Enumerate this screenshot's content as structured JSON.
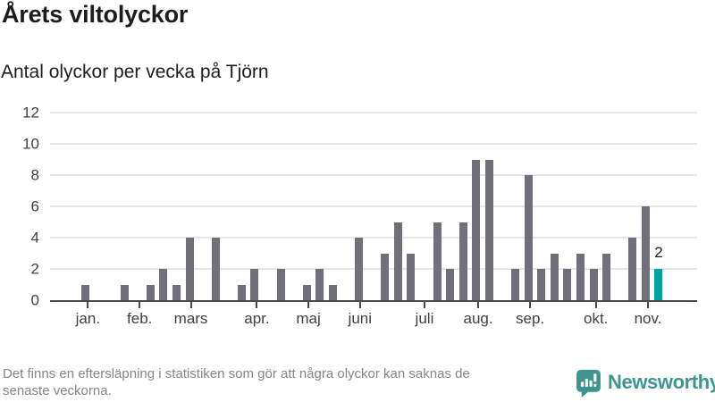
{
  "header": {
    "title": "Årets viltolyckor",
    "subtitle": "Antal olyckor per vecka på Tjörn"
  },
  "chart_data": {
    "type": "bar",
    "title": "Årets viltolyckor",
    "subtitle": "Antal olyckor per vecka på Tjörn",
    "ylabel": "",
    "xlabel": "",
    "ylim": [
      0,
      12
    ],
    "yticks": [
      0,
      2,
      4,
      6,
      8,
      10,
      12
    ],
    "grid": true,
    "bar_color": "#70707a",
    "highlight_color": "#00a59c",
    "axis_weeks": 49.45,
    "months": [
      {
        "label": "jan.",
        "slot": 2.7
      },
      {
        "label": "feb.",
        "slot": 6.67
      },
      {
        "label": "mars",
        "slot": 10.6
      },
      {
        "label": "apr.",
        "slot": 15.67
      },
      {
        "label": "maj",
        "slot": 19.62
      },
      {
        "label": "juni",
        "slot": 23.58
      },
      {
        "label": "juli",
        "slot": 28.53
      },
      {
        "label": "aug.",
        "slot": 32.65
      },
      {
        "label": "sep.",
        "slot": 36.63
      },
      {
        "label": "okt.",
        "slot": 41.68
      },
      {
        "label": "nov.",
        "slot": 45.68
      }
    ],
    "bars": [
      {
        "slot": 2,
        "value": 1
      },
      {
        "slot": 5,
        "value": 1
      },
      {
        "slot": 7,
        "value": 1
      },
      {
        "slot": 8,
        "value": 2
      },
      {
        "slot": 9,
        "value": 1
      },
      {
        "slot": 10,
        "value": 4
      },
      {
        "slot": 12,
        "value": 4
      },
      {
        "slot": 14,
        "value": 1
      },
      {
        "slot": 15,
        "value": 2
      },
      {
        "slot": 17,
        "value": 2
      },
      {
        "slot": 19,
        "value": 1
      },
      {
        "slot": 20,
        "value": 2
      },
      {
        "slot": 21,
        "value": 1
      },
      {
        "slot": 23,
        "value": 4
      },
      {
        "slot": 25,
        "value": 3
      },
      {
        "slot": 26,
        "value": 5
      },
      {
        "slot": 27,
        "value": 3
      },
      {
        "slot": 29,
        "value": 5
      },
      {
        "slot": 30,
        "value": 2
      },
      {
        "slot": 31,
        "value": 5
      },
      {
        "slot": 32,
        "value": 9
      },
      {
        "slot": 33,
        "value": 9
      },
      {
        "slot": 35,
        "value": 2
      },
      {
        "slot": 36,
        "value": 8
      },
      {
        "slot": 37,
        "value": 2
      },
      {
        "slot": 38,
        "value": 3
      },
      {
        "slot": 39,
        "value": 2
      },
      {
        "slot": 40,
        "value": 3
      },
      {
        "slot": 41,
        "value": 2
      },
      {
        "slot": 42,
        "value": 3
      },
      {
        "slot": 44,
        "value": 4
      },
      {
        "slot": 45,
        "value": 6
      },
      {
        "slot": 46,
        "value": 2,
        "highlight": true,
        "label": "2"
      }
    ]
  },
  "footer": {
    "note_line1": "Det finns en eftersläpning i statistiken som gör att några olyckor kan saknas de",
    "note_line2": "senaste veckorna.",
    "brand": "Newsworthy"
  },
  "colors": {
    "bar": "#70707a",
    "highlight": "#00a59c",
    "axis": "#494951",
    "gridline": "#e6e6e8",
    "text_dark": "#1d1d1b",
    "text_axis": "#3f3f46",
    "text_note": "#85858a",
    "brand_teal": "#3d958e"
  }
}
